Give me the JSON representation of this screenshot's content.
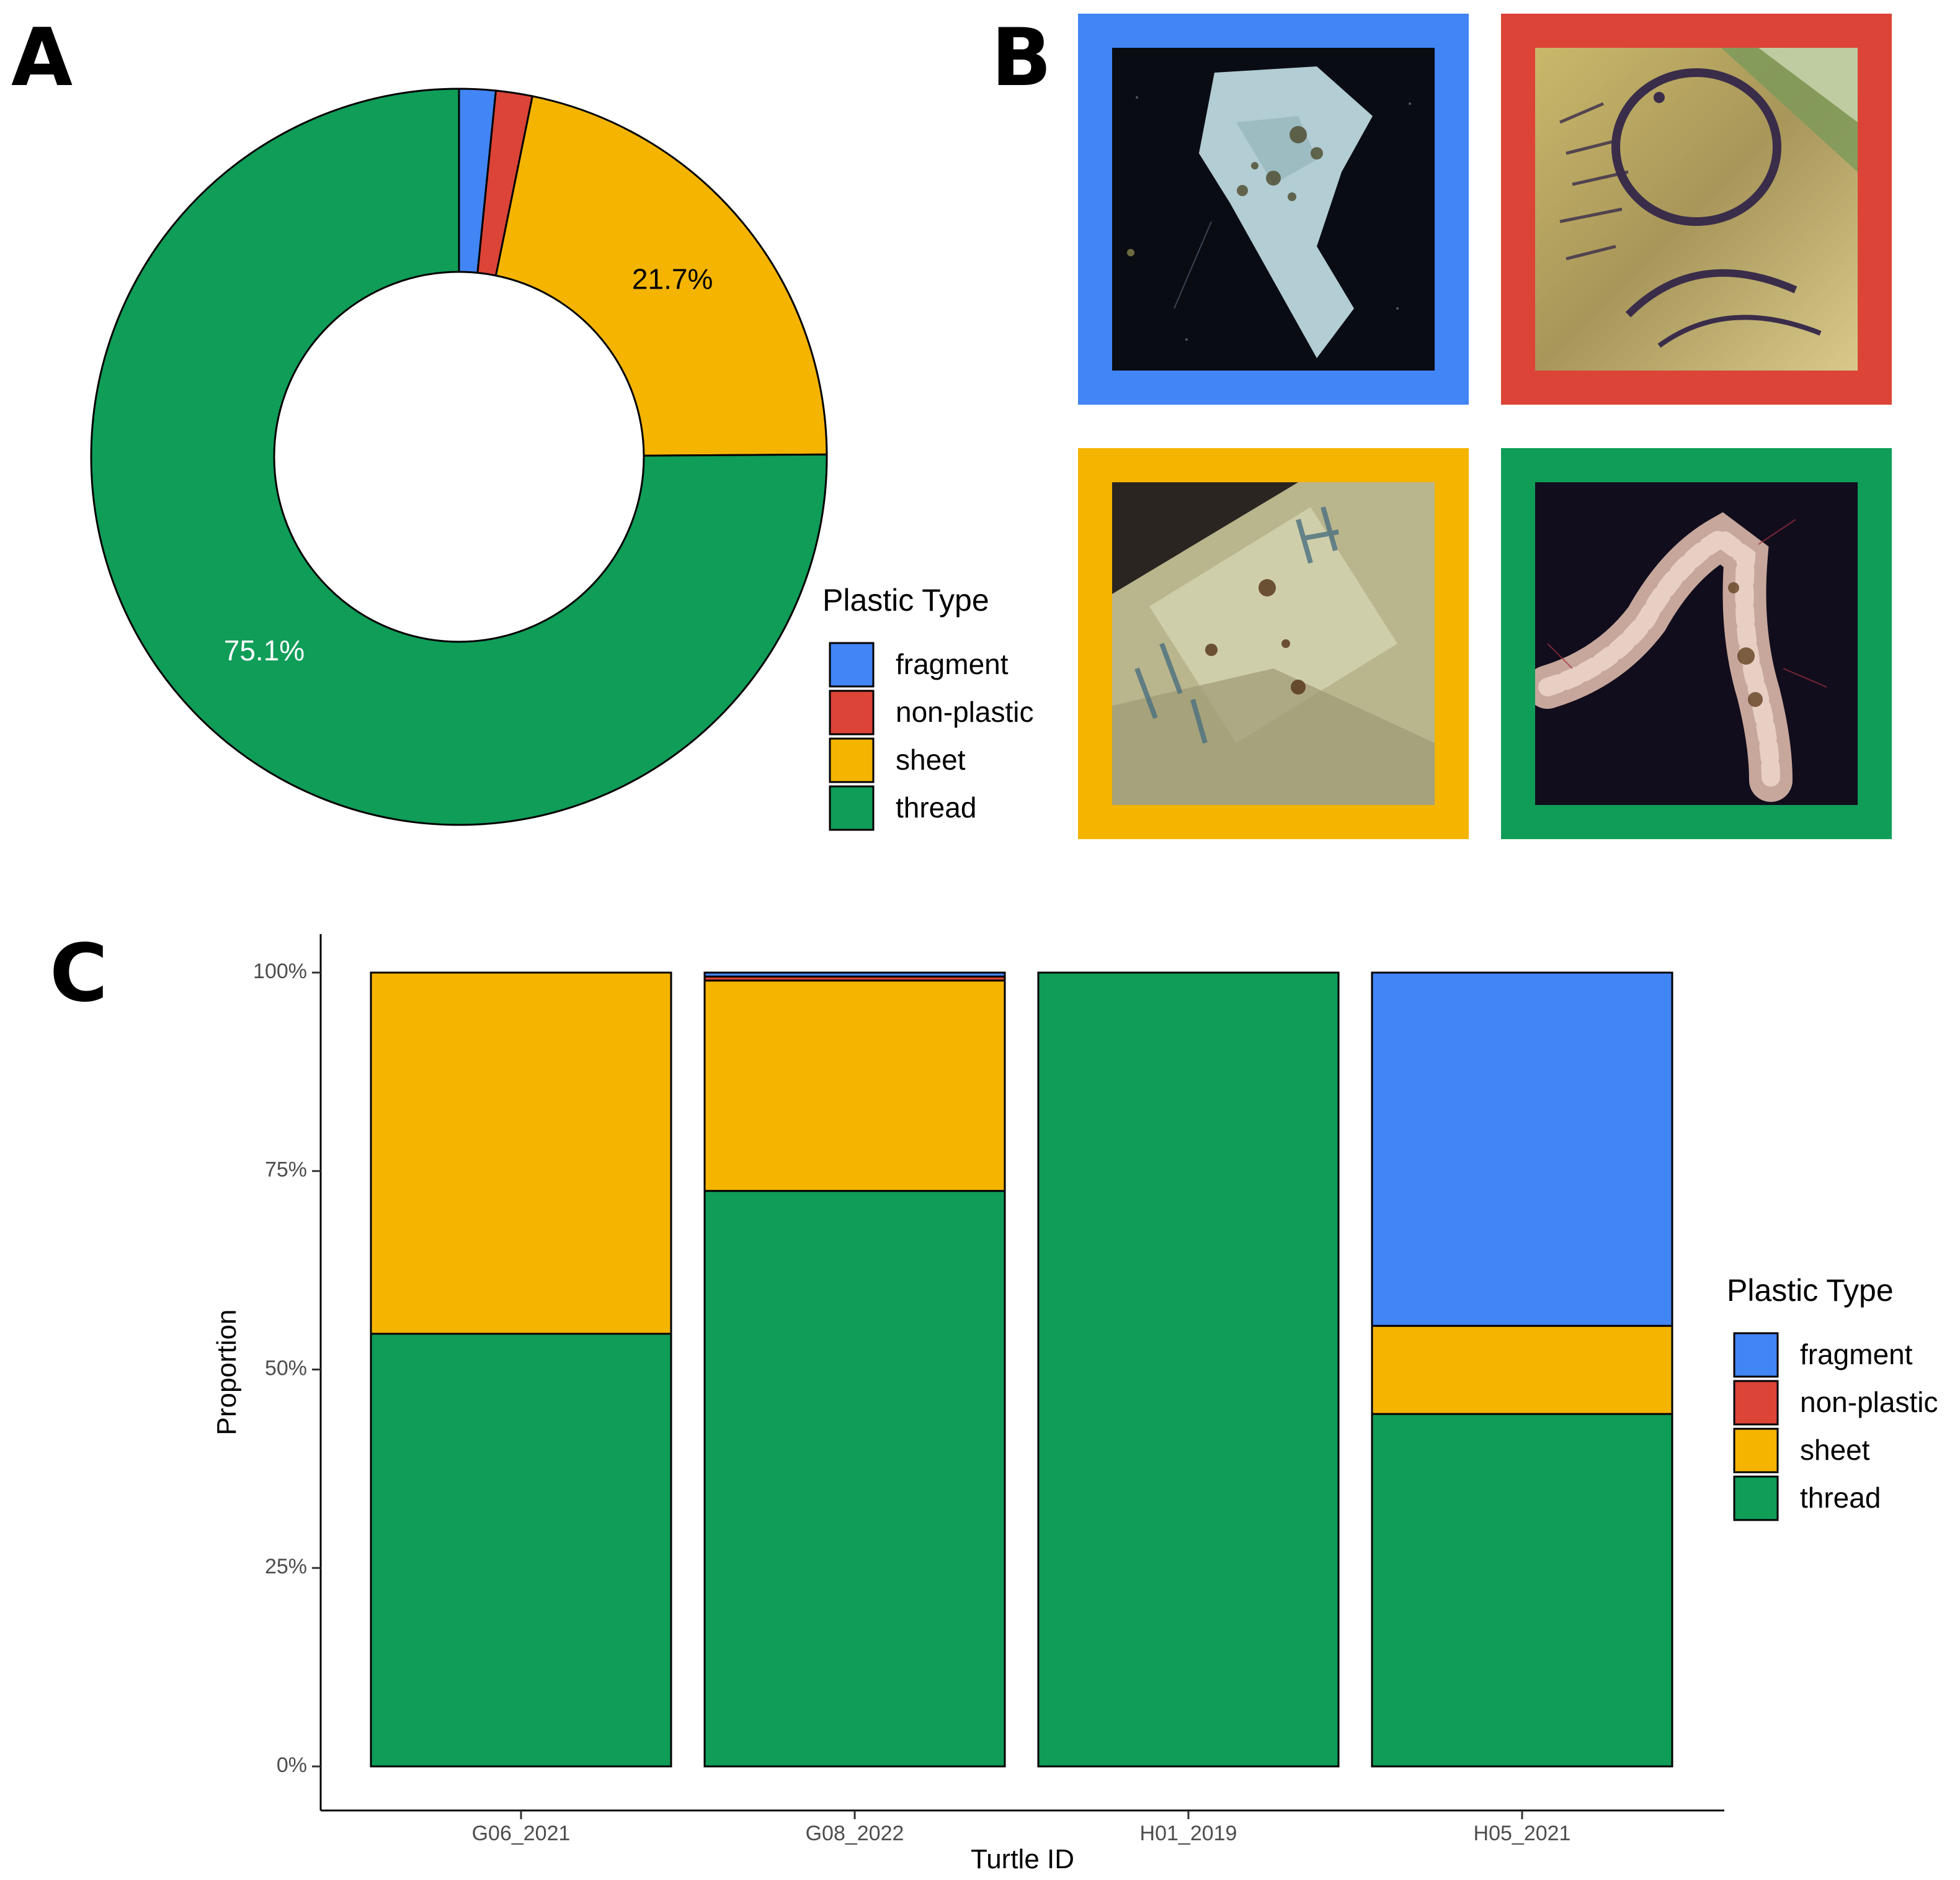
{
  "panels": {
    "a": "A",
    "b": "B",
    "c": "C"
  },
  "colors": {
    "fragment": "#4285F4",
    "non-plastic": "#DB4437",
    "sheet": "#F4B400",
    "thread": "#0F9D58"
  },
  "legend": {
    "title": "Plastic Type",
    "items": [
      "fragment",
      "non-plastic",
      "sheet",
      "thread"
    ]
  },
  "panel_b": {
    "frames": [
      {
        "type": "fragment",
        "photo": "fragment-specimen-photo"
      },
      {
        "type": "non-plastic",
        "photo": "non-plastic-specimen-photo"
      },
      {
        "type": "sheet",
        "photo": "sheet-specimen-photo"
      },
      {
        "type": "thread",
        "photo": "thread-specimen-photo"
      }
    ]
  },
  "chart_data": [
    {
      "type": "pie",
      "panel": "A",
      "donut": true,
      "slices": [
        {
          "label": "fragment",
          "value": 1.6
        },
        {
          "label": "non-plastic",
          "value": 1.6
        },
        {
          "label": "sheet",
          "value": 21.7
        },
        {
          "label": "thread",
          "value": 75.1
        }
      ],
      "data_labels": {
        "sheet": "21.7%",
        "thread": "75.1%"
      },
      "legend_title": "Plastic Type",
      "legend_position": "right"
    },
    {
      "type": "bar",
      "stacked": true,
      "panel": "C",
      "categories": [
        "G06_2021",
        "G08_2022",
        "H01_2019",
        "H05_2021"
      ],
      "series": [
        {
          "name": "thread",
          "values": [
            54.5,
            72.5,
            100,
            44.4
          ]
        },
        {
          "name": "sheet",
          "values": [
            45.5,
            26.5,
            0,
            11.1
          ]
        },
        {
          "name": "non-plastic",
          "values": [
            0,
            0.5,
            0,
            0
          ]
        },
        {
          "name": "fragment",
          "values": [
            0,
            0.5,
            0,
            44.5
          ]
        }
      ],
      "xlabel": "Turtle ID",
      "ylabel": "Proportion",
      "ylim": [
        0,
        100
      ],
      "yticks": [
        0,
        25,
        50,
        75,
        100
      ],
      "ytick_labels": [
        "0%",
        "25%",
        "50%",
        "75%",
        "100%"
      ],
      "legend_title": "Plastic Type",
      "legend_position": "right",
      "grid": false
    }
  ]
}
